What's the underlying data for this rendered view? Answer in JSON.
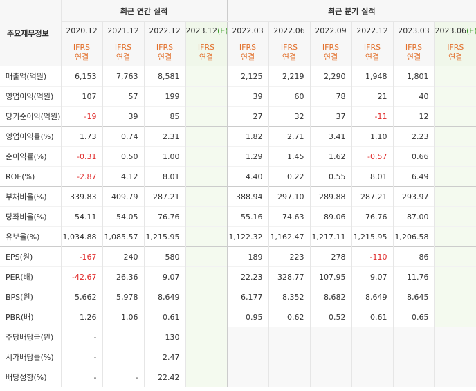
{
  "table": {
    "corner": "주요재무정보",
    "annual_title": "최근 연간 실적",
    "quarterly_title": "최근 분기 실적",
    "annual_periods": [
      {
        "label": "2020.12"
      },
      {
        "label": "2021.12"
      },
      {
        "label": "2022.12"
      },
      {
        "label": "2023.12",
        "suffix": "(E)"
      }
    ],
    "quarterly_periods": [
      {
        "label": "2022.03"
      },
      {
        "label": "2022.06"
      },
      {
        "label": "2022.09"
      },
      {
        "label": "2022.12"
      },
      {
        "label": "2023.03"
      },
      {
        "label": "2023.06",
        "suffix": "(E)"
      }
    ],
    "standard_top": "IFRS",
    "standard_bottom": "연결",
    "rows": [
      {
        "label": "매출액(억원)",
        "annual": [
          "6,153",
          "7,763",
          "8,581",
          null
        ],
        "quarterly": [
          "2,125",
          "2,219",
          "2,290",
          "1,948",
          "1,801",
          null
        ]
      },
      {
        "label": "영업이익(억원)",
        "annual": [
          "107",
          "57",
          "199",
          null
        ],
        "quarterly": [
          "39",
          "60",
          "78",
          "21",
          "40",
          null
        ]
      },
      {
        "label": "당기순이익(억원)",
        "annual": [
          "-19",
          "39",
          "85",
          null
        ],
        "quarterly": [
          "27",
          "32",
          "37",
          "-11",
          "12",
          null
        ]
      },
      {
        "label": "영업이익률(%)",
        "annual": [
          "1.73",
          "0.74",
          "2.31",
          null
        ],
        "quarterly": [
          "1.82",
          "2.71",
          "3.41",
          "1.10",
          "2.23",
          null
        ]
      },
      {
        "label": "순이익률(%)",
        "annual": [
          "-0.31",
          "0.50",
          "1.00",
          null
        ],
        "quarterly": [
          "1.29",
          "1.45",
          "1.62",
          "-0.57",
          "0.66",
          null
        ]
      },
      {
        "label": "ROE(%)",
        "annual": [
          "-2.87",
          "4.12",
          "8.01",
          null
        ],
        "quarterly": [
          "4.40",
          "0.22",
          "0.55",
          "8.01",
          "6.49",
          null
        ]
      },
      {
        "label": "부채비율(%)",
        "annual": [
          "339.83",
          "409.79",
          "287.21",
          null
        ],
        "quarterly": [
          "388.94",
          "297.10",
          "289.88",
          "287.21",
          "293.97",
          null
        ]
      },
      {
        "label": "당좌비율(%)",
        "annual": [
          "54.11",
          "54.05",
          "76.76",
          null
        ],
        "quarterly": [
          "55.16",
          "74.63",
          "89.06",
          "76.76",
          "87.00",
          null
        ]
      },
      {
        "label": "유보율(%)",
        "annual": [
          "1,034.88",
          "1,085.57",
          "1,215.95",
          null
        ],
        "quarterly": [
          "1,122.32",
          "1,162.47",
          "1,217.11",
          "1,215.95",
          "1,206.58",
          null
        ]
      },
      {
        "label": "EPS(원)",
        "annual": [
          "-167",
          "240",
          "580",
          null
        ],
        "quarterly": [
          "189",
          "223",
          "278",
          "-110",
          "86",
          null
        ]
      },
      {
        "label": "PER(배)",
        "annual": [
          "-42.67",
          "26.36",
          "9.07",
          null
        ],
        "quarterly": [
          "22.23",
          "328.77",
          "107.95",
          "9.07",
          "11.76",
          null
        ]
      },
      {
        "label": "BPS(원)",
        "annual": [
          "5,662",
          "5,978",
          "8,649",
          null
        ],
        "quarterly": [
          "6,177",
          "8,352",
          "8,682",
          "8,649",
          "8,645",
          null
        ]
      },
      {
        "label": "PBR(배)",
        "annual": [
          "1.26",
          "1.06",
          "0.61",
          null
        ],
        "quarterly": [
          "0.95",
          "0.62",
          "0.52",
          "0.61",
          "0.65",
          null
        ]
      },
      {
        "label": "주당배당금(원)",
        "annual": [
          "-",
          null,
          "130",
          null
        ],
        "quarterly": [
          null,
          null,
          null,
          null,
          null,
          null
        ]
      },
      {
        "label": "시가배당률(%)",
        "annual": [
          "-",
          null,
          "2.47",
          null
        ],
        "quarterly": [
          null,
          null,
          null,
          null,
          null,
          null
        ]
      },
      {
        "label": "배당성향(%)",
        "annual": [
          "-",
          "-",
          "22.42",
          null
        ],
        "quarterly": [
          null,
          null,
          null,
          null,
          null,
          null
        ]
      }
    ]
  }
}
